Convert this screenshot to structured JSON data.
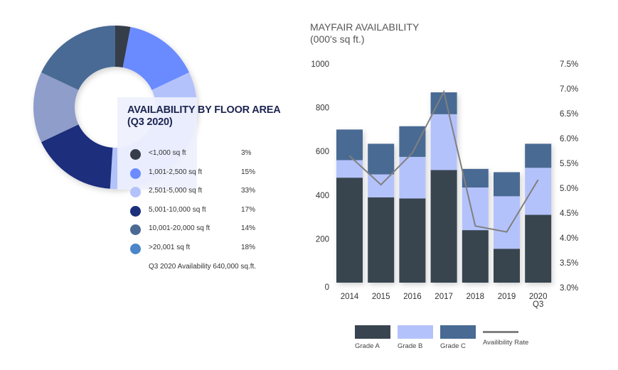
{
  "chart_data": [
    {
      "type": "pie",
      "title": "AVAILABILITY BY FLOOR AREA",
      "subtitle": "(Q3 2020)",
      "categories": [
        "<1,000 sq ft",
        "1,001-2,500 sq ft",
        "2,501-5,000 sq ft",
        "5,001-10,000 sq ft",
        "10,001-20,000 sq ft",
        ">20,001 sq ft"
      ],
      "values": [
        3,
        15,
        33,
        17,
        14,
        18
      ],
      "labels": [
        "3%",
        "15%",
        "33%",
        "17%",
        "14%",
        "18%"
      ],
      "colors": [
        "#363d4a",
        "#6b8bff",
        "#b4c2fb",
        "#1b2f7b",
        "#4a6a94",
        "#4a86c8"
      ],
      "slice_colors": [
        "#363d4a",
        "#6b8bff",
        "#b4c2fb",
        "#1b2f7b",
        "#8f9dca",
        "#4a6a94"
      ],
      "donut": true,
      "note": "Q3 2020 Availability 640,000 sq.ft."
    },
    {
      "type": "bar",
      "stacked": true,
      "title": "MAYFAIR AVAILABILITY",
      "subtitle": "(000's sq ft.)",
      "categories": [
        "2014",
        "2015",
        "2016",
        "2017",
        "2018",
        "2019",
        "2020 Q3"
      ],
      "category_lines": [
        [
          "2014"
        ],
        [
          "2015"
        ],
        [
          "2016"
        ],
        [
          "2017"
        ],
        [
          "2018"
        ],
        [
          "2019"
        ],
        [
          "2020",
          "Q3"
        ]
      ],
      "series": [
        {
          "name": "Grade A",
          "color": "#38444f",
          "values": [
            480,
            390,
            385,
            515,
            240,
            155,
            310
          ]
        },
        {
          "name": "Grade B",
          "color": "#b4c2fb",
          "values": [
            80,
            105,
            190,
            255,
            195,
            240,
            215
          ]
        },
        {
          "name": "Grade C",
          "color": "#486a93",
          "values": [
            140,
            140,
            140,
            100,
            85,
            110,
            110
          ]
        }
      ],
      "line_series": {
        "name": "Availibility Rate",
        "color": "#808080",
        "axis": "right",
        "values": [
          5.65,
          5.07,
          5.71,
          6.94,
          4.24,
          4.12,
          5.17
        ]
      },
      "ylim": [
        0,
        1000
      ],
      "yticks": [
        "0",
        "200",
        "400",
        "600",
        "800",
        "1000"
      ],
      "y2lim": [
        3.0,
        7.5
      ],
      "y2ticks": [
        "3.0%",
        "3.5%",
        "4.0%",
        "4.5%",
        "5.0%",
        "5.5%",
        "6.0%",
        "6.5%",
        "7.0%",
        "7.5%"
      ],
      "grid": false,
      "legend": "bottom"
    }
  ]
}
